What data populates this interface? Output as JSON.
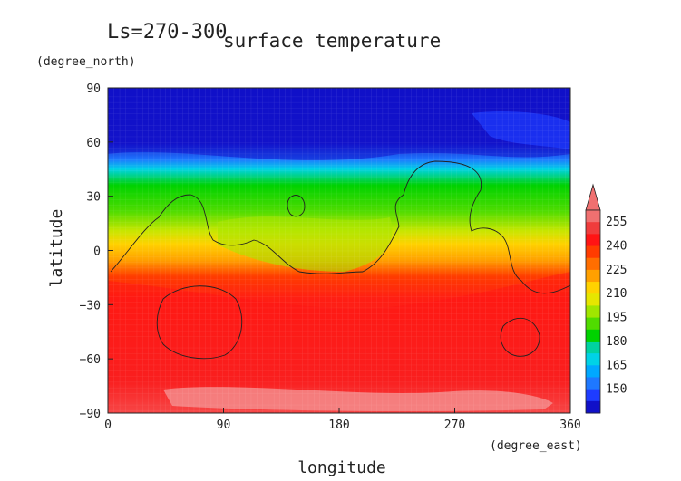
{
  "chart_data": {
    "type": "heatmap",
    "title_left": "Ls=270-300",
    "title": "surface temperature",
    "xlabel": "longitude",
    "ylabel": "latitude",
    "xunit": "(degree_east)",
    "yunit": "(degree_north)",
    "xlim": [
      0,
      360
    ],
    "ylim": [
      -90,
      90
    ],
    "xticks": [
      "0",
      "90",
      "180",
      "270",
      "360"
    ],
    "yticks": [
      "90",
      "60",
      "30",
      "0",
      "−30",
      "−60",
      "−90"
    ],
    "colorbar": {
      "levels": [
        255,
        240,
        225,
        210,
        195,
        180,
        165,
        150
      ],
      "labels": [
        "255",
        "240",
        "225",
        "210",
        "195",
        "180",
        "165",
        "150"
      ],
      "colors": [
        "#1010c8",
        "#1e3cff",
        "#1e78ff",
        "#00a8ff",
        "#00d2e6",
        "#00d2a0",
        "#00d200",
        "#50dc00",
        "#a0e600",
        "#e6e600",
        "#ffd200",
        "#ffa000",
        "#ff6e00",
        "#ff3c00",
        "#ff1414",
        "#f03c3c",
        "#f07070"
      ],
      "extend": "max"
    },
    "bands_by_latitude": [
      {
        "lat_from": 90,
        "lat_to": 55,
        "value": "< 150"
      },
      {
        "lat_from": 55,
        "lat_to": 45,
        "value": "150-170"
      },
      {
        "lat_from": 45,
        "lat_to": 25,
        "value": "175-195"
      },
      {
        "lat_from": 25,
        "lat_to": 5,
        "value": "200-225"
      },
      {
        "lat_from": 5,
        "lat_to": -20,
        "value": "230-250"
      },
      {
        "lat_from": -20,
        "lat_to": -75,
        "value": "250-260"
      },
      {
        "lat_from": -75,
        "lat_to": -90,
        "value": "> 260"
      }
    ],
    "grid": true,
    "legend_position": "right"
  }
}
